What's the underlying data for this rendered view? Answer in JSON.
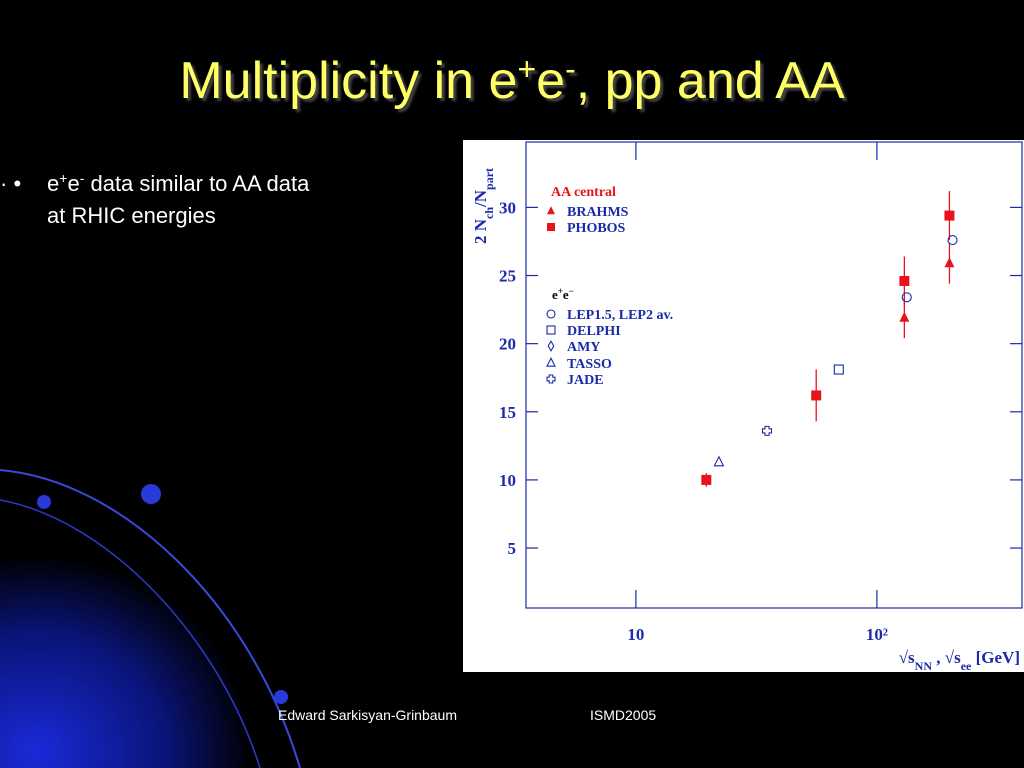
{
  "title": [
    "Multiplicity in e",
    "+",
    "e",
    "-",
    ", pp and AA"
  ],
  "bullet": [
    "e",
    "+",
    "e",
    "-",
    " data similar to AA data",
    "at RHIC energies"
  ],
  "footer": {
    "author": "Edward Sarkisyan-Grinbaum",
    "event": "ISMD2005"
  },
  "chart_data": {
    "type": "scatter",
    "ylabel": [
      "2 N",
      "ch",
      "/N",
      "part"
    ],
    "xlabel": [
      "√s",
      "NN",
      " , √s",
      "ee",
      "  [GeV]"
    ],
    "xscale": "log",
    "xlim": [
      3.5,
      400
    ],
    "ylim": [
      0.6,
      34.8
    ],
    "xticks": [
      10,
      {
        "value": 100,
        "label": "10²"
      }
    ],
    "yticks": [
      5,
      10,
      15,
      20,
      25,
      30
    ],
    "legend_groups": [
      {
        "title": "AA central",
        "series": [
          0,
          1
        ]
      },
      {
        "title": [
          "e",
          "+",
          "e",
          "−"
        ],
        "series": [
          2,
          3,
          4,
          5,
          6
        ]
      }
    ],
    "series": [
      {
        "name": "BRAHMS",
        "color": "#e8141c",
        "marker": "triangle",
        "x": [
          130,
          200
        ],
        "values": [
          21.9,
          25.9
        ],
        "errors": [
          1.5,
          1.5
        ]
      },
      {
        "name": "PHOBOS",
        "color": "#e8141c",
        "marker": "square",
        "x": [
          19.6,
          56,
          130,
          200
        ],
        "values": [
          10.0,
          16.2,
          24.6,
          29.4
        ],
        "errors": [
          0.5,
          1.9,
          1.8,
          1.8
        ]
      },
      {
        "name": "LEP1.5, LEP2 av.",
        "color": "#1a2aa8",
        "marker": "circle-open",
        "x": [
          133,
          206
        ],
        "values": [
          23.4,
          27.6
        ]
      },
      {
        "name": "DELPHI",
        "color": "#1a2aa8",
        "marker": "square-open",
        "x": [
          69.5
        ],
        "values": [
          18.1
        ]
      },
      {
        "name": "AMY",
        "color": "#1a2aa8",
        "marker": "diamond-open",
        "x": [],
        "values": []
      },
      {
        "name": "TASSO",
        "color": "#1a2aa8",
        "marker": "triangle-open",
        "x": [
          22.1
        ],
        "values": [
          11.3
        ]
      },
      {
        "name": "JADE",
        "color": "#1a2aa8",
        "marker": "cross-open",
        "x": [
          35
        ],
        "values": [
          13.6
        ]
      }
    ]
  }
}
